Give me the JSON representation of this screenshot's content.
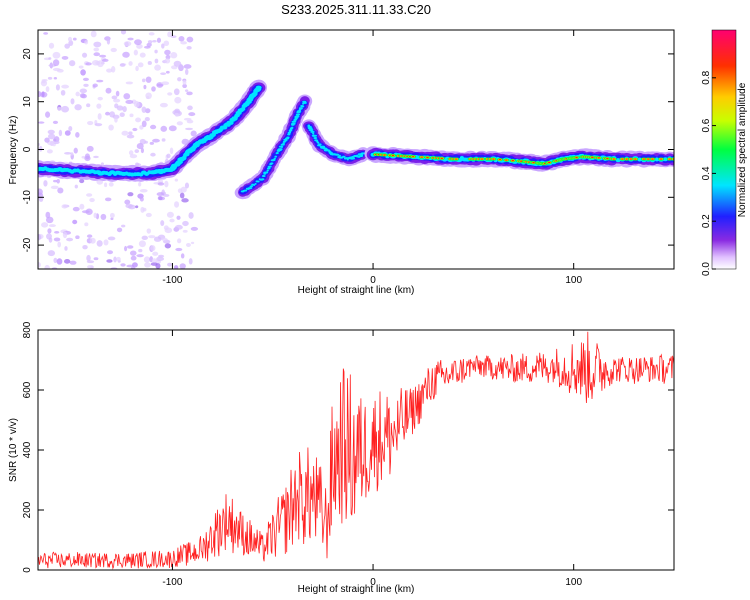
{
  "title": "S233.2025.311.11.33.C20",
  "chart_data": [
    {
      "type": "heatmap",
      "title": "S233.2025.311.11.33.C20",
      "xlabel": "Height of straight line (km)",
      "ylabel": "Frequency (Hz)",
      "xlim": [
        -167,
        150
      ],
      "ylim": [
        -25,
        25
      ],
      "x_ticks": [
        -100,
        0,
        100
      ],
      "y_ticks": [
        20,
        10,
        0,
        -10,
        -20
      ],
      "colorbar": {
        "label": "Normalized spectral amplitude",
        "range": [
          0,
          1
        ],
        "ticks": [
          0.0,
          0.2,
          0.4,
          0.6,
          0.8
        ],
        "colors": [
          "#ffffff",
          "#d9b3ff",
          "#8a2be2",
          "#2020ff",
          "#00e5ff",
          "#00ff40",
          "#c8ff00",
          "#ffcc00",
          "#ff4000",
          "#ff0060"
        ]
      },
      "ridge": [
        {
          "x": -167,
          "y": -4
        },
        {
          "x": -150,
          "y": -4.5
        },
        {
          "x": -130,
          "y": -5
        },
        {
          "x": -110,
          "y": -5
        },
        {
          "x": -100,
          "y": -4
        },
        {
          "x": -93,
          "y": -1
        },
        {
          "x": -88,
          "y": 1
        },
        {
          "x": -80,
          "y": 3
        },
        {
          "x": -70,
          "y": 6
        },
        {
          "x": -62,
          "y": 10
        },
        {
          "x": -57,
          "y": 13
        }
      ],
      "branches": [
        [
          {
            "x": -65,
            "y": -9
          },
          {
            "x": -55,
            "y": -6
          },
          {
            "x": -48,
            "y": -1
          },
          {
            "x": -42,
            "y": 3
          },
          {
            "x": -38,
            "y": 7
          },
          {
            "x": -34,
            "y": 10
          }
        ],
        [
          {
            "x": -32,
            "y": 5
          },
          {
            "x": -27,
            "y": 1
          },
          {
            "x": -20,
            "y": -1
          },
          {
            "x": -12,
            "y": -2
          },
          {
            "x": -5,
            "y": -1
          }
        ],
        [
          {
            "x": 0,
            "y": -1
          },
          {
            "x": 20,
            "y": -1.5
          },
          {
            "x": 40,
            "y": -2
          },
          {
            "x": 60,
            "y": -2
          },
          {
            "x": 75,
            "y": -2.5
          },
          {
            "x": 85,
            "y": -3
          },
          {
            "x": 95,
            "y": -2
          },
          {
            "x": 105,
            "y": -1.5
          },
          {
            "x": 120,
            "y": -2
          },
          {
            "x": 150,
            "y": -2
          }
        ]
      ]
    },
    {
      "type": "line",
      "xlabel": "Height of straight line (km)",
      "ylabel": "SNR (10 * v/v)",
      "xlim": [
        -167,
        150
      ],
      "ylim": [
        0,
        800
      ],
      "x_ticks": [
        -100,
        0,
        100
      ],
      "y_ticks": [
        0,
        200,
        400,
        600,
        800
      ],
      "color": "#ff2020",
      "series": [
        {
          "name": "SNR",
          "envelope": [
            {
              "x": -167,
              "low": 5,
              "high": 60
            },
            {
              "x": -120,
              "low": 5,
              "high": 60
            },
            {
              "x": -100,
              "low": 5,
              "high": 70
            },
            {
              "x": -85,
              "low": 20,
              "high": 120
            },
            {
              "x": -78,
              "low": 40,
              "high": 220
            },
            {
              "x": -72,
              "low": 60,
              "high": 280
            },
            {
              "x": -65,
              "low": 40,
              "high": 200
            },
            {
              "x": -55,
              "low": 20,
              "high": 120
            },
            {
              "x": -45,
              "low": 40,
              "high": 280
            },
            {
              "x": -38,
              "low": 80,
              "high": 400
            },
            {
              "x": -30,
              "low": 60,
              "high": 420
            },
            {
              "x": -23,
              "low": 10,
              "high": 300
            },
            {
              "x": -20,
              "low": 100,
              "high": 600
            },
            {
              "x": -15,
              "low": 150,
              "high": 700
            },
            {
              "x": -10,
              "low": 100,
              "high": 650
            },
            {
              "x": -5,
              "low": 200,
              "high": 600
            },
            {
              "x": 0,
              "low": 250,
              "high": 620
            },
            {
              "x": 10,
              "low": 300,
              "high": 600
            },
            {
              "x": 20,
              "low": 450,
              "high": 620
            },
            {
              "x": 30,
              "low": 560,
              "high": 700
            },
            {
              "x": 50,
              "low": 640,
              "high": 720
            },
            {
              "x": 70,
              "low": 620,
              "high": 720
            },
            {
              "x": 90,
              "low": 620,
              "high": 740
            },
            {
              "x": 108,
              "low": 540,
              "high": 800
            },
            {
              "x": 120,
              "low": 620,
              "high": 720
            },
            {
              "x": 150,
              "low": 620,
              "high": 720
            }
          ]
        }
      ]
    }
  ]
}
